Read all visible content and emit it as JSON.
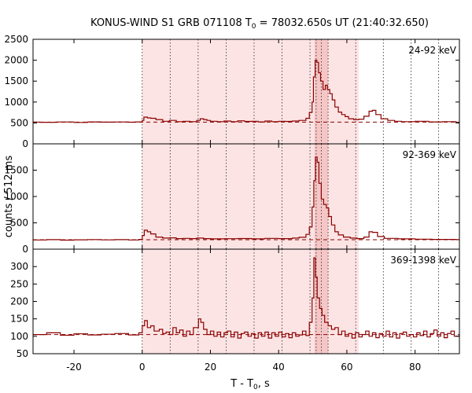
{
  "chart_data": {
    "type": "line",
    "title_main": "KONUS-WIND S1 GRB 071108 T",
    "title_sub": "0",
    "title_rest": " = 78032.650s UT (21:40:32.650)",
    "xlabel_main": "T - T",
    "xlabel_sub": "0",
    "xlabel_rest": ", s",
    "ylabel": "counts / 512 ms",
    "xlim": [
      -32,
      93
    ],
    "xticks": [
      -20,
      0,
      20,
      40,
      60,
      80
    ],
    "colors": {
      "line": "#8b0000",
      "shade": "#fde4e4",
      "shade_dark": "#f6c6c6"
    },
    "shaded_interval": [
      0,
      63.5
    ],
    "dark_intervals": [
      [
        50.5,
        54.5
      ]
    ],
    "dotted_lines": [
      0,
      8.2,
      16.4,
      24.6,
      32.8,
      41.0,
      49.2,
      51.0,
      52.5,
      54.5,
      62.6,
      70.7,
      78.8,
      86.9
    ],
    "panels": [
      {
        "label": "24-92 keV",
        "ylim": [
          0,
          2500
        ],
        "yticks": [
          0,
          500,
          1000,
          1500,
          2000,
          2500
        ],
        "background": 520,
        "points": [
          [
            -32,
            520
          ],
          [
            -30,
            515
          ],
          [
            -25,
            522
          ],
          [
            -20,
            512
          ],
          [
            -16,
            525
          ],
          [
            -12,
            518
          ],
          [
            -8,
            522
          ],
          [
            -4,
            516
          ],
          [
            -2,
            525
          ],
          [
            0,
            560
          ],
          [
            0.5,
            640
          ],
          [
            1.5,
            620
          ],
          [
            2.5,
            610
          ],
          [
            4,
            580
          ],
          [
            6,
            540
          ],
          [
            8,
            560
          ],
          [
            10,
            530
          ],
          [
            12,
            540
          ],
          [
            14,
            530
          ],
          [
            16,
            560
          ],
          [
            17,
            600
          ],
          [
            18,
            580
          ],
          [
            19,
            560
          ],
          [
            20,
            540
          ],
          [
            22,
            530
          ],
          [
            24,
            545
          ],
          [
            26,
            530
          ],
          [
            28,
            550
          ],
          [
            30,
            535
          ],
          [
            32,
            540
          ],
          [
            34,
            525
          ],
          [
            36,
            545
          ],
          [
            38,
            530
          ],
          [
            40,
            540
          ],
          [
            42,
            535
          ],
          [
            44,
            545
          ],
          [
            46,
            560
          ],
          [
            48,
            610
          ],
          [
            49,
            750
          ],
          [
            49.8,
            1000
          ],
          [
            50.2,
            1600
          ],
          [
            50.7,
            2000
          ],
          [
            51.2,
            1950
          ],
          [
            51.7,
            1700
          ],
          [
            52.3,
            1500
          ],
          [
            53,
            1300
          ],
          [
            53.7,
            1400
          ],
          [
            54.3,
            1300
          ],
          [
            55,
            1200
          ],
          [
            55.7,
            1050
          ],
          [
            56.5,
            880
          ],
          [
            57.5,
            760
          ],
          [
            58.5,
            700
          ],
          [
            59.5,
            650
          ],
          [
            60.5,
            600
          ],
          [
            62,
            580
          ],
          [
            63.5,
            590
          ],
          [
            65,
            660
          ],
          [
            66.5,
            780
          ],
          [
            67.5,
            800
          ],
          [
            68.5,
            700
          ],
          [
            70,
            600
          ],
          [
            72,
            560
          ],
          [
            74,
            540
          ],
          [
            76,
            530
          ],
          [
            80,
            540
          ],
          [
            84,
            525
          ],
          [
            88,
            530
          ],
          [
            92,
            515
          ]
        ]
      },
      {
        "label": "92-369 keV",
        "ylim": [
          0,
          2000
        ],
        "yticks": [
          0,
          500,
          1000,
          1500
        ],
        "background": 180,
        "points": [
          [
            -32,
            175
          ],
          [
            -28,
            180
          ],
          [
            -24,
            172
          ],
          [
            -20,
            178
          ],
          [
            -16,
            182
          ],
          [
            -12,
            176
          ],
          [
            -8,
            180
          ],
          [
            -4,
            175
          ],
          [
            -1,
            185
          ],
          [
            0,
            260
          ],
          [
            0.6,
            360
          ],
          [
            1.5,
            330
          ],
          [
            2.5,
            290
          ],
          [
            4,
            230
          ],
          [
            6,
            210
          ],
          [
            8,
            215
          ],
          [
            10,
            200
          ],
          [
            12,
            205
          ],
          [
            14,
            200
          ],
          [
            16,
            210
          ],
          [
            18,
            200
          ],
          [
            20,
            195
          ],
          [
            24,
            198
          ],
          [
            28,
            202
          ],
          [
            32,
            196
          ],
          [
            36,
            205
          ],
          [
            40,
            200
          ],
          [
            44,
            210
          ],
          [
            46,
            225
          ],
          [
            48,
            280
          ],
          [
            49,
            420
          ],
          [
            49.8,
            800
          ],
          [
            50.3,
            1300
          ],
          [
            50.8,
            1750
          ],
          [
            51.3,
            1650
          ],
          [
            51.8,
            1250
          ],
          [
            52.5,
            950
          ],
          [
            53.2,
            850
          ],
          [
            54,
            780
          ],
          [
            54.7,
            620
          ],
          [
            55.5,
            460
          ],
          [
            56.5,
            330
          ],
          [
            57.5,
            270
          ],
          [
            59,
            230
          ],
          [
            61,
            210
          ],
          [
            63,
            200
          ],
          [
            65,
            230
          ],
          [
            66.5,
            330
          ],
          [
            67.5,
            320
          ],
          [
            69,
            240
          ],
          [
            71,
            205
          ],
          [
            75,
            195
          ],
          [
            80,
            190
          ],
          [
            85,
            185
          ],
          [
            92,
            180
          ]
        ]
      },
      {
        "label": "369-1398 keV",
        "ylim": [
          50,
          350
        ],
        "yticks": [
          50,
          100,
          150,
          200,
          250,
          300
        ],
        "background": 105,
        "points": [
          [
            -32,
            105
          ],
          [
            -28,
            110
          ],
          [
            -24,
            103
          ],
          [
            -20,
            107
          ],
          [
            -16,
            104
          ],
          [
            -12,
            106
          ],
          [
            -8,
            108
          ],
          [
            -4,
            104
          ],
          [
            -1,
            110
          ],
          [
            0,
            130
          ],
          [
            0.7,
            145
          ],
          [
            1.5,
            125
          ],
          [
            2.5,
            130
          ],
          [
            3.5,
            115
          ],
          [
            5,
            120
          ],
          [
            6,
            108
          ],
          [
            7,
            112
          ],
          [
            8,
            105
          ],
          [
            9,
            125
          ],
          [
            10,
            110
          ],
          [
            11,
            118
          ],
          [
            12,
            100
          ],
          [
            13,
            115
          ],
          [
            14,
            105
          ],
          [
            15,
            125
          ],
          [
            16.5,
            150
          ],
          [
            17.2,
            140
          ],
          [
            18,
            120
          ],
          [
            19,
            105
          ],
          [
            20,
            115
          ],
          [
            21,
            100
          ],
          [
            22,
            112
          ],
          [
            23,
            98
          ],
          [
            24,
            110
          ],
          [
            25,
            115
          ],
          [
            26,
            98
          ],
          [
            27,
            112
          ],
          [
            28,
            95
          ],
          [
            29,
            108
          ],
          [
            30,
            112
          ],
          [
            31,
            100
          ],
          [
            32,
            108
          ],
          [
            33,
            95
          ],
          [
            34,
            110
          ],
          [
            35,
            100
          ],
          [
            36,
            112
          ],
          [
            37,
            95
          ],
          [
            38,
            110
          ],
          [
            39,
            100
          ],
          [
            40,
            112
          ],
          [
            41,
            98
          ],
          [
            42,
            108
          ],
          [
            43,
            96
          ],
          [
            44,
            110
          ],
          [
            45,
            100
          ],
          [
            46,
            104
          ],
          [
            47,
            115
          ],
          [
            48,
            102
          ],
          [
            49,
            140
          ],
          [
            49.8,
            210
          ],
          [
            50.3,
            325
          ],
          [
            50.8,
            270
          ],
          [
            51.3,
            210
          ],
          [
            52,
            180
          ],
          [
            52.7,
            160
          ],
          [
            53.5,
            140
          ],
          [
            54.5,
            130
          ],
          [
            55.5,
            120
          ],
          [
            56.5,
            125
          ],
          [
            57.5,
            105
          ],
          [
            58.5,
            115
          ],
          [
            59.5,
            100
          ],
          [
            60.5,
            108
          ],
          [
            61.5,
            95
          ],
          [
            62.5,
            110
          ],
          [
            63.5,
            98
          ],
          [
            64.5,
            105
          ],
          [
            65.5,
            115
          ],
          [
            66.5,
            100
          ],
          [
            67.5,
            110
          ],
          [
            68.5,
            96
          ],
          [
            69.5,
            108
          ],
          [
            70.5,
            100
          ],
          [
            71.5,
            115
          ],
          [
            72.5,
            98
          ],
          [
            73.5,
            110
          ],
          [
            74.5,
            95
          ],
          [
            75.5,
            108
          ],
          [
            76.5,
            112
          ],
          [
            77.5,
            100
          ],
          [
            78.5,
            105
          ],
          [
            79.5,
            98
          ],
          [
            80.5,
            110
          ],
          [
            81.5,
            102
          ],
          [
            82.5,
            115
          ],
          [
            83.5,
            98
          ],
          [
            84.5,
            108
          ],
          [
            85.5,
            118
          ],
          [
            86.5,
            100
          ],
          [
            87.5,
            110
          ],
          [
            88.5,
            96
          ],
          [
            89.5,
            108
          ],
          [
            90.5,
            115
          ],
          [
            91.5,
            100
          ],
          [
            93,
            105
          ]
        ]
      }
    ]
  }
}
